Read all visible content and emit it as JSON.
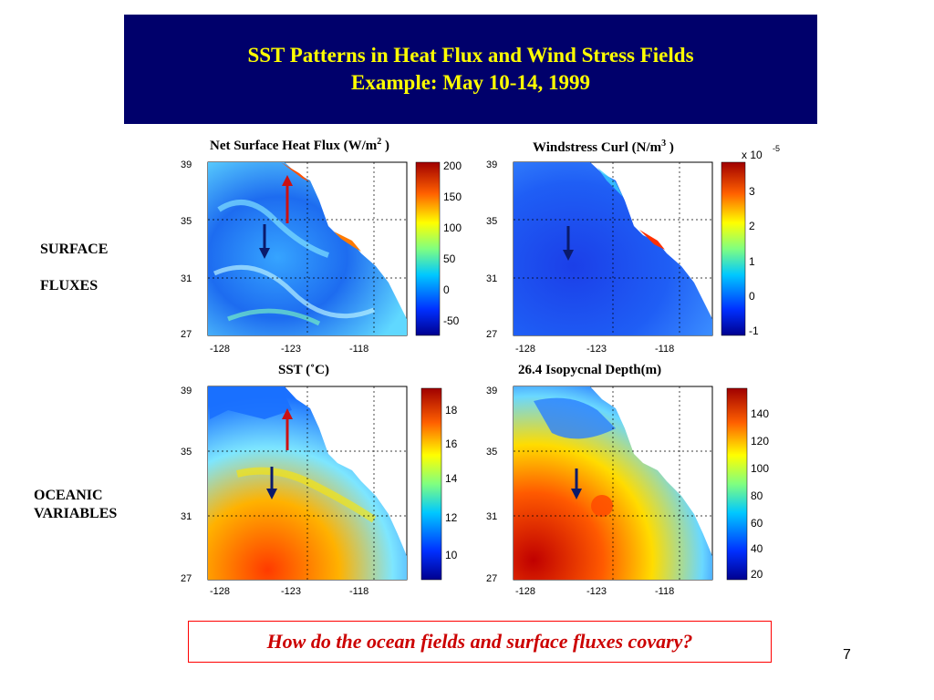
{
  "slide": {
    "title_line1": "SST Patterns in Heat Flux and Wind Stress Fields",
    "title_line2": "Example: May 10-14, 1999",
    "page_number": "7",
    "question": "How do the ocean fields and surface fluxes covary?"
  },
  "side_labels": {
    "surface_line1": "SURFACE",
    "surface_line2": "FLUXES",
    "oceanic_line1": "OCEANIC",
    "oceanic_line2": "VARIABLES"
  },
  "panels": [
    {
      "title_prefix": "Net Surface Heat Flux (W/m",
      "title_sup": "2",
      "title_suffix": " )",
      "lat_ticks": [
        "39",
        "35",
        "31",
        "27"
      ],
      "lon_ticks": [
        "-128",
        "-123",
        "-118"
      ],
      "colorbar_ticks": [
        "200",
        "150",
        "100",
        "50",
        "0",
        "-50"
      ],
      "colorbar_exponent": "",
      "arrows": [
        "up-red",
        "down-navy"
      ]
    },
    {
      "title_prefix": "Windstress Curl (N/m",
      "title_sup": "3",
      "title_suffix": " )",
      "lat_ticks": [
        "39",
        "35",
        "31",
        "27"
      ],
      "lon_ticks": [
        "-128",
        "-123",
        "-118"
      ],
      "colorbar_ticks": [
        "3",
        "2",
        "1",
        "0",
        "-1"
      ],
      "colorbar_exponent": "x 10",
      "colorbar_exponent_power": "-5",
      "arrows": [
        "down-navy"
      ]
    },
    {
      "title_prefix": "SST (˚C)",
      "title_sup": "",
      "title_suffix": "",
      "lat_ticks": [
        "39",
        "35",
        "31",
        "27"
      ],
      "lon_ticks": [
        "-128",
        "-123",
        "-118"
      ],
      "colorbar_ticks": [
        "18",
        "16",
        "14",
        "12",
        "10"
      ],
      "colorbar_exponent": "",
      "arrows": [
        "up-red",
        "down-navy"
      ]
    },
    {
      "title_prefix": "26.4 Isopycnal Depth(m)",
      "title_sup": "",
      "title_suffix": "",
      "lat_ticks": [
        "39",
        "35",
        "31",
        "27"
      ],
      "lon_ticks": [
        "-128",
        "-123",
        "-118"
      ],
      "colorbar_ticks": [
        "140",
        "120",
        "100",
        "80",
        "60",
        "40",
        "20"
      ],
      "colorbar_exponent": "",
      "arrows": [
        "down-navy"
      ]
    }
  ],
  "colors": {
    "title_bg": "#00006b",
    "title_text": "#ffff00",
    "question_border": "#ff0000",
    "question_text": "#cc0000",
    "arrow_red": "#cc1111",
    "arrow_navy": "#0a1a6b"
  }
}
